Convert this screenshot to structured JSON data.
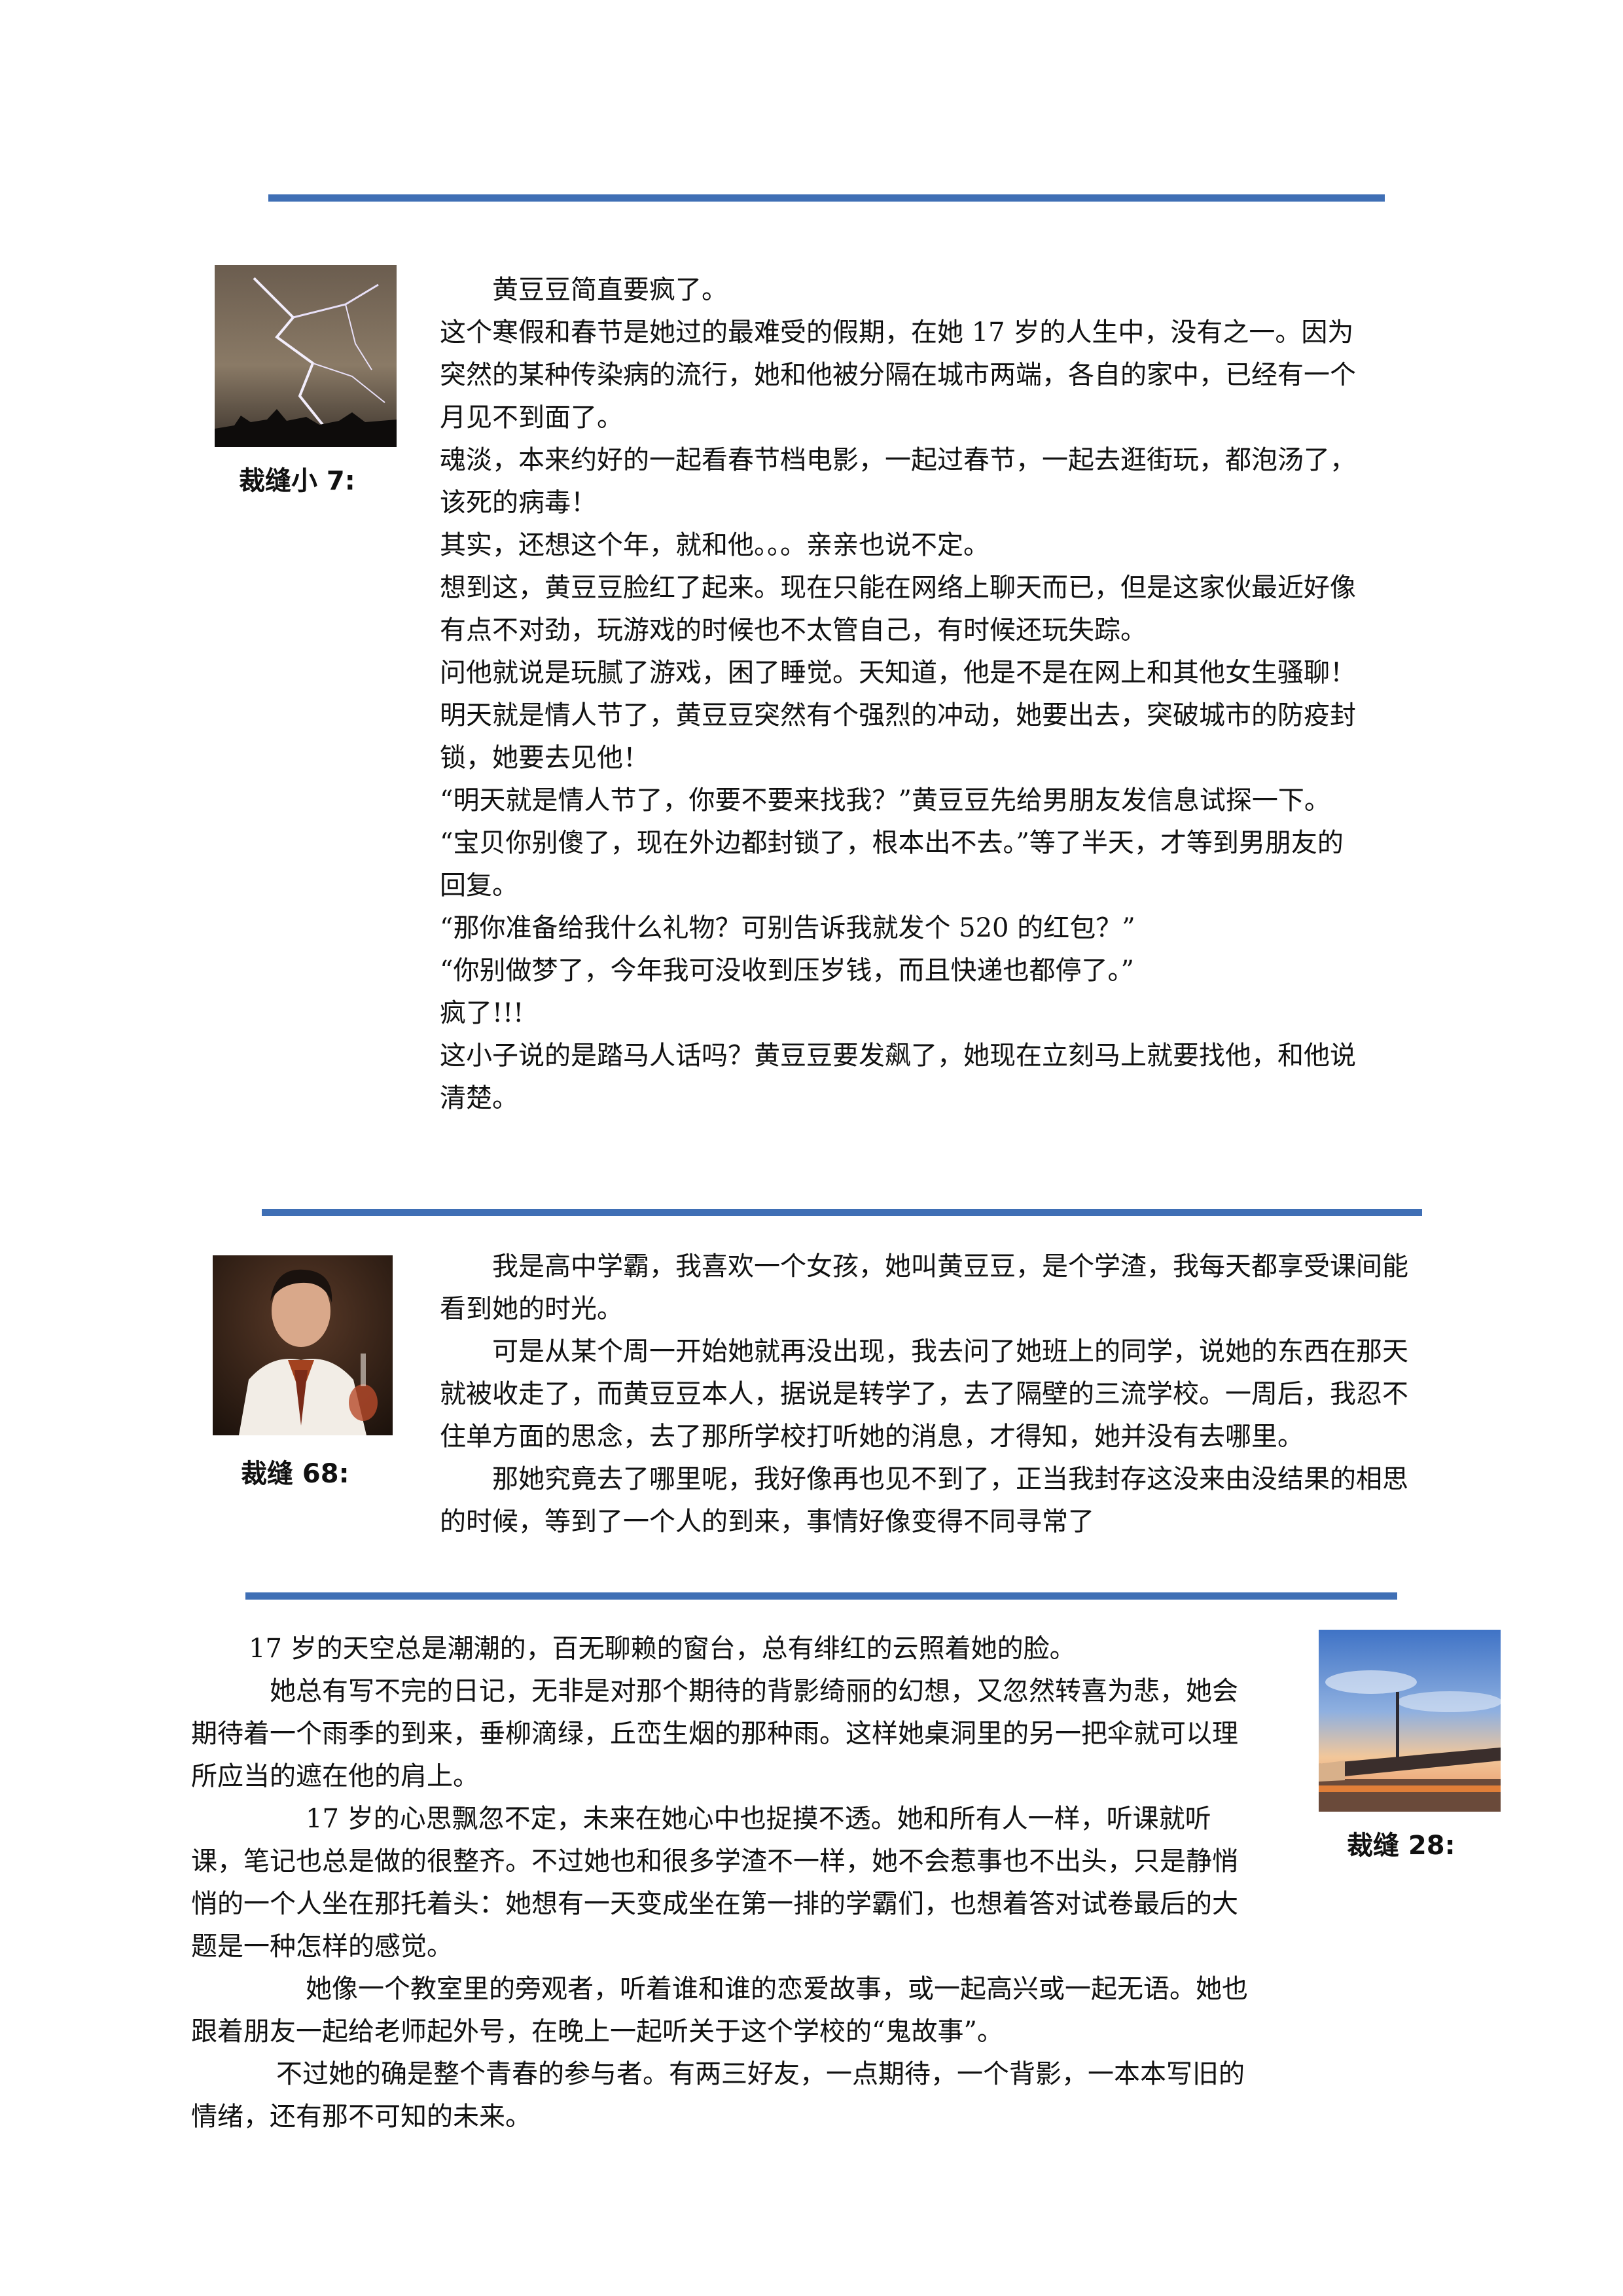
{
  "section1": {
    "caption": "裁缝小 7:",
    "image_label": "lightning-sky-photo",
    "paragraphs": [
      "黄豆豆简直要疯了。",
      "这个寒假和春节是她过的最难受的假期，在她 17 岁的人生中，没有之一。因为突然的某种传染病的流行，她和他被分隔在城市两端，各自的家中，已经有一个月见不到面了。",
      "魂淡，本来约好的一起看春节档电影，一起过春节，一起去逛街玩，都泡汤了，该死的病毒！",
      "其实，还想这个年，就和他。。。亲亲也说不定。",
      "想到这，黄豆豆脸红了起来。现在只能在网络上聊天而已，但是这家伙最近好像有点不对劲，玩游戏的时候也不太管自己，有时候还玩失踪。",
      "问他就说是玩腻了游戏，困了睡觉。天知道，他是不是在网上和其他女生骚聊！",
      "明天就是情人节了，黄豆豆突然有个强烈的冲动，她要出去，突破城市的防疫封锁，她要去见他！",
      "“明天就是情人节了，你要不要来找我？”黄豆豆先给男朋友发信息试探一下。",
      "“宝贝你别傻了，现在外边都封锁了，根本出不去。”等了半天，才等到男朋友的回复。",
      "“那你准备给我什么礼物？可别告诉我就发个 520 的红包？”",
      "“你别做梦了，今年我可没收到压岁钱，而且快递也都停了。”",
      "疯了!!!",
      "这小子说的是踏马人话吗？黄豆豆要发飙了，她现在立刻马上就要找他，和他说清楚。"
    ]
  },
  "section2": {
    "caption": "裁缝 68:",
    "image_label": "man-in-white-suit-photo",
    "paragraphs": [
      "我是高中学霸，我喜欢一个女孩，她叫黄豆豆，是个学渣，我每天都享受课间能看到她的时光。",
      "可是从某个周一开始她就再没出现，我去问了她班上的同学，说她的东西在那天就被收走了，而黄豆豆本人，据说是转学了，去了隔壁的三流学校。一周后，我忍不住单方面的思念，去了那所学校打听她的消息，才得知，她并没有去哪里。",
      "那她究竟去了哪里呢，我好像再也见不到了，正当我封存这没来由没结果的相思的时候，等到了一个人的到来，事情好像变得不同寻常了"
    ]
  },
  "section3": {
    "caption": "裁缝 28:",
    "image_label": "sunset-pier-photo",
    "paragraphs": [
      "17 岁的天空总是潮潮的，百无聊赖的窗台，总有绯红的云照着她的脸。",
      "她总有写不完的日记，无非是对那个期待的背影绮丽的幻想，又忽然转喜为悲，她会期待着一个雨季的到来，垂柳滴绿，丘峦生烟的那种雨。这样她桌洞里的另一把伞就可以理所应当的遮在他的肩上。",
      "17 岁的心思飘忽不定，未来在她心中也捉摸不透。她和所有人一样，听课就听课，笔记也总是做的很整齐。不过她也和很多学渣不一样，她不会惹事也不出头，只是静悄悄的一个人坐在那托着头：她想有一天变成坐在第一排的学霸们，也想着答对试卷最后的大题是一种怎样的感觉。",
      "她像一个教室里的旁观者，听着谁和谁的恋爱故事，或一起高兴或一起无语。她也跟着朋友一起给老师起外号，在晚上一起听关于这个学校的“鬼故事”。",
      "不过她的确是整个青春的参与者。有两三好友，一点期待，一个背影，一本本写旧的情绪，还有那不可知的未来。"
    ]
  }
}
